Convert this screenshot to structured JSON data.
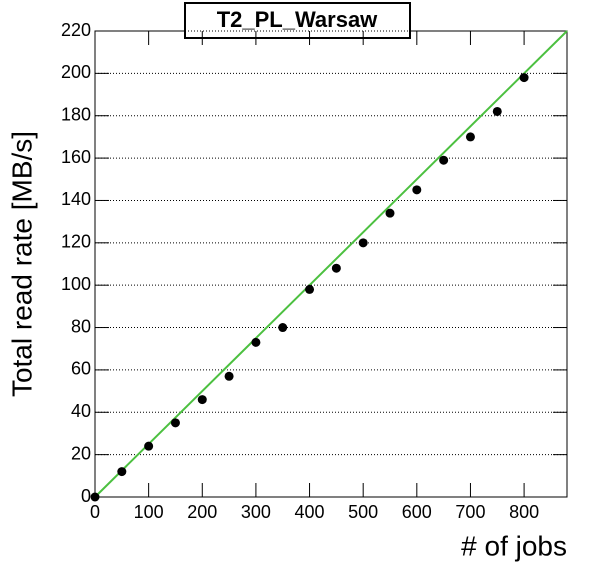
{
  "chart_data": {
    "type": "scatter",
    "title": "T2_PL_Warsaw",
    "x_label": "# of jobs",
    "y_label": "Total read rate [MB/s]",
    "x": [
      0,
      50,
      100,
      150,
      200,
      250,
      300,
      350,
      400,
      450,
      500,
      550,
      600,
      650,
      700,
      750,
      800
    ],
    "values": [
      0,
      12,
      24,
      35,
      46,
      57,
      73,
      80,
      98,
      108,
      120,
      134,
      145,
      159,
      170,
      182,
      198
    ],
    "color": "#000000",
    "fit": {
      "x": [
        0,
        880
      ],
      "y": [
        0,
        220
      ],
      "color": "#4cc040"
    },
    "xlim": [
      0,
      880
    ],
    "xticks": [
      0,
      100,
      200,
      300,
      400,
      500,
      600,
      700,
      800
    ],
    "ylim": [
      0,
      220
    ],
    "yticks": [
      0,
      20,
      40,
      60,
      80,
      100,
      120,
      140,
      160,
      180,
      200,
      220
    ],
    "grid": true
  }
}
